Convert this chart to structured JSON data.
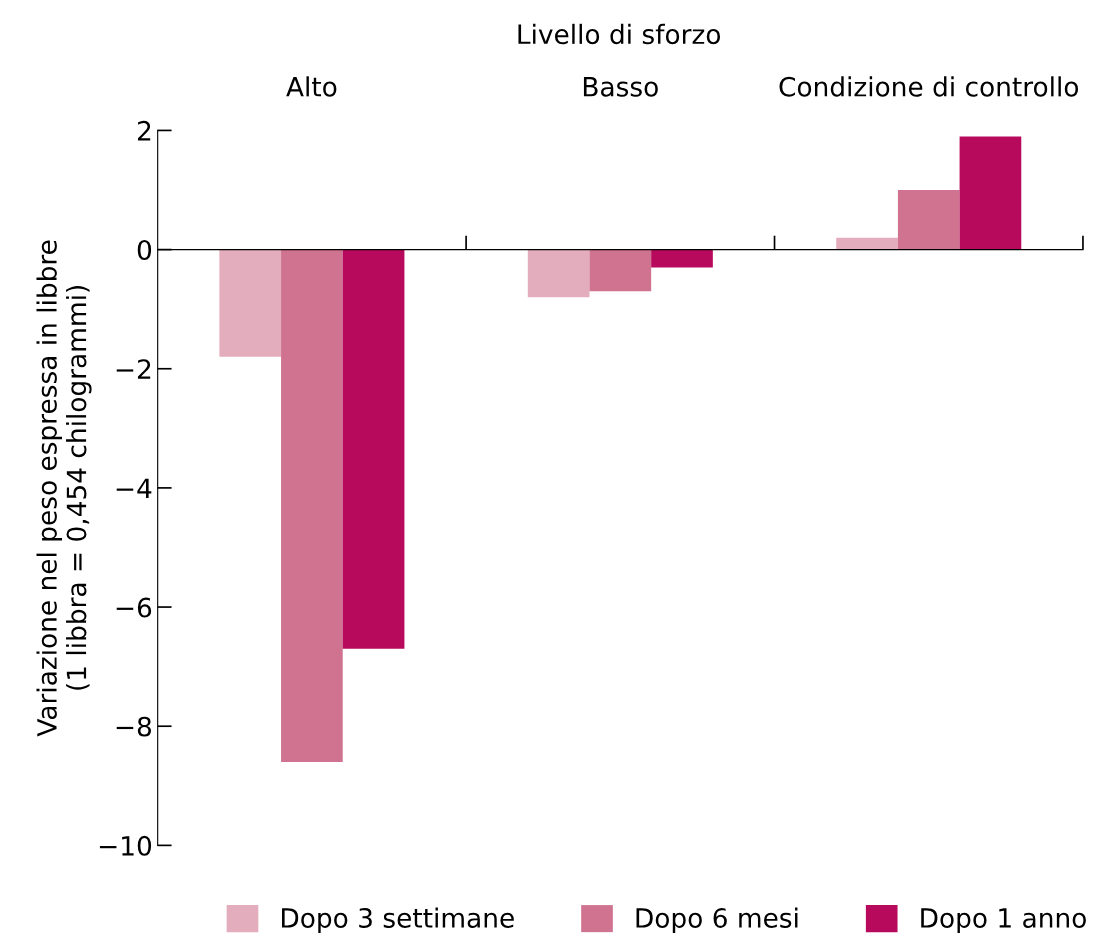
{
  "chart_data": {
    "type": "bar",
    "title": "Livello di sforzo",
    "ylabel": "Variazione nel peso espressa in libbre\n(1 libbra = 0,454 chilogrammi)",
    "categories": [
      "Alto",
      "Basso",
      "Condizione di controllo"
    ],
    "series": [
      {
        "name": "Dopo 3 settimane",
        "color": "#e4adbd",
        "values": [
          -1.8,
          -0.8,
          0.2
        ]
      },
      {
        "name": "Dopo 6 mesi",
        "color": "#d07390",
        "values": [
          -8.6,
          -0.7,
          1.0
        ]
      },
      {
        "name": "Dopo 1 anno",
        "color": "#b80a5c",
        "values": [
          -6.7,
          -0.3,
          1.9
        ]
      }
    ],
    "ylim": [
      -10,
      2
    ],
    "yticks": [
      {
        "value": -10,
        "label": "−10"
      },
      {
        "value": -8,
        "label": "−8"
      },
      {
        "value": -6,
        "label": "−6"
      },
      {
        "value": -4,
        "label": "−4"
      },
      {
        "value": -2,
        "label": "−2"
      },
      0,
      2
    ],
    "legend": "bottom"
  }
}
